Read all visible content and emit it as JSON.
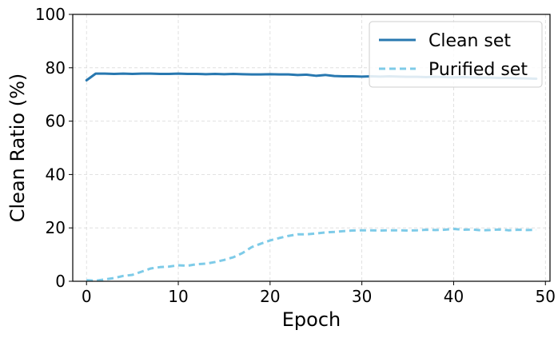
{
  "chart_data": {
    "type": "line",
    "xlabel": "Epoch",
    "ylabel": "Clean Ratio (%)",
    "xlim": [
      -1.5,
      50.5
    ],
    "ylim": [
      0,
      100
    ],
    "xticks": [
      0,
      10,
      20,
      30,
      40,
      50
    ],
    "yticks": [
      0,
      20,
      40,
      60,
      80,
      100
    ],
    "grid": true,
    "legend_position": "top-right",
    "x": [
      0,
      1,
      2,
      3,
      4,
      5,
      6,
      7,
      8,
      9,
      10,
      11,
      12,
      13,
      14,
      15,
      16,
      17,
      18,
      19,
      20,
      21,
      22,
      23,
      24,
      25,
      26,
      27,
      28,
      29,
      30,
      31,
      32,
      33,
      34,
      35,
      36,
      37,
      38,
      39,
      40,
      41,
      42,
      43,
      44,
      45,
      46,
      47,
      48,
      49
    ],
    "series": [
      {
        "name": "Clean set",
        "color": "#2878b0",
        "style": "solid",
        "values": [
          75.3,
          77.8,
          77.8,
          77.7,
          77.8,
          77.7,
          77.8,
          77.8,
          77.7,
          77.7,
          77.8,
          77.7,
          77.7,
          77.6,
          77.7,
          77.6,
          77.7,
          77.6,
          77.5,
          77.5,
          77.6,
          77.5,
          77.5,
          77.3,
          77.4,
          77.0,
          77.3,
          76.9,
          76.8,
          76.8,
          76.7,
          76.8,
          76.7,
          76.8,
          76.7,
          76.6,
          76.6,
          76.5,
          76.6,
          76.5,
          76.4,
          76.5,
          76.4,
          76.3,
          76.3,
          76.2,
          76.2,
          76.1,
          76.0,
          75.9
        ]
      },
      {
        "name": "Purified set",
        "color": "#7ecbe8",
        "style": "dashed",
        "values": [
          0.4,
          0.2,
          0.7,
          1.2,
          2.0,
          2.4,
          3.6,
          4.8,
          5.3,
          5.5,
          6.0,
          5.8,
          6.4,
          6.6,
          7.2,
          8.0,
          9.0,
          10.6,
          12.8,
          14.1,
          15.3,
          16.2,
          17.0,
          17.6,
          17.6,
          17.9,
          18.3,
          18.5,
          18.8,
          19.0,
          19.1,
          19.1,
          19.0,
          19.1,
          19.1,
          19.0,
          19.1,
          19.3,
          19.2,
          19.3,
          19.6,
          19.3,
          19.4,
          19.1,
          19.2,
          19.4,
          19.1,
          19.3,
          19.2,
          19.3
        ]
      }
    ]
  }
}
